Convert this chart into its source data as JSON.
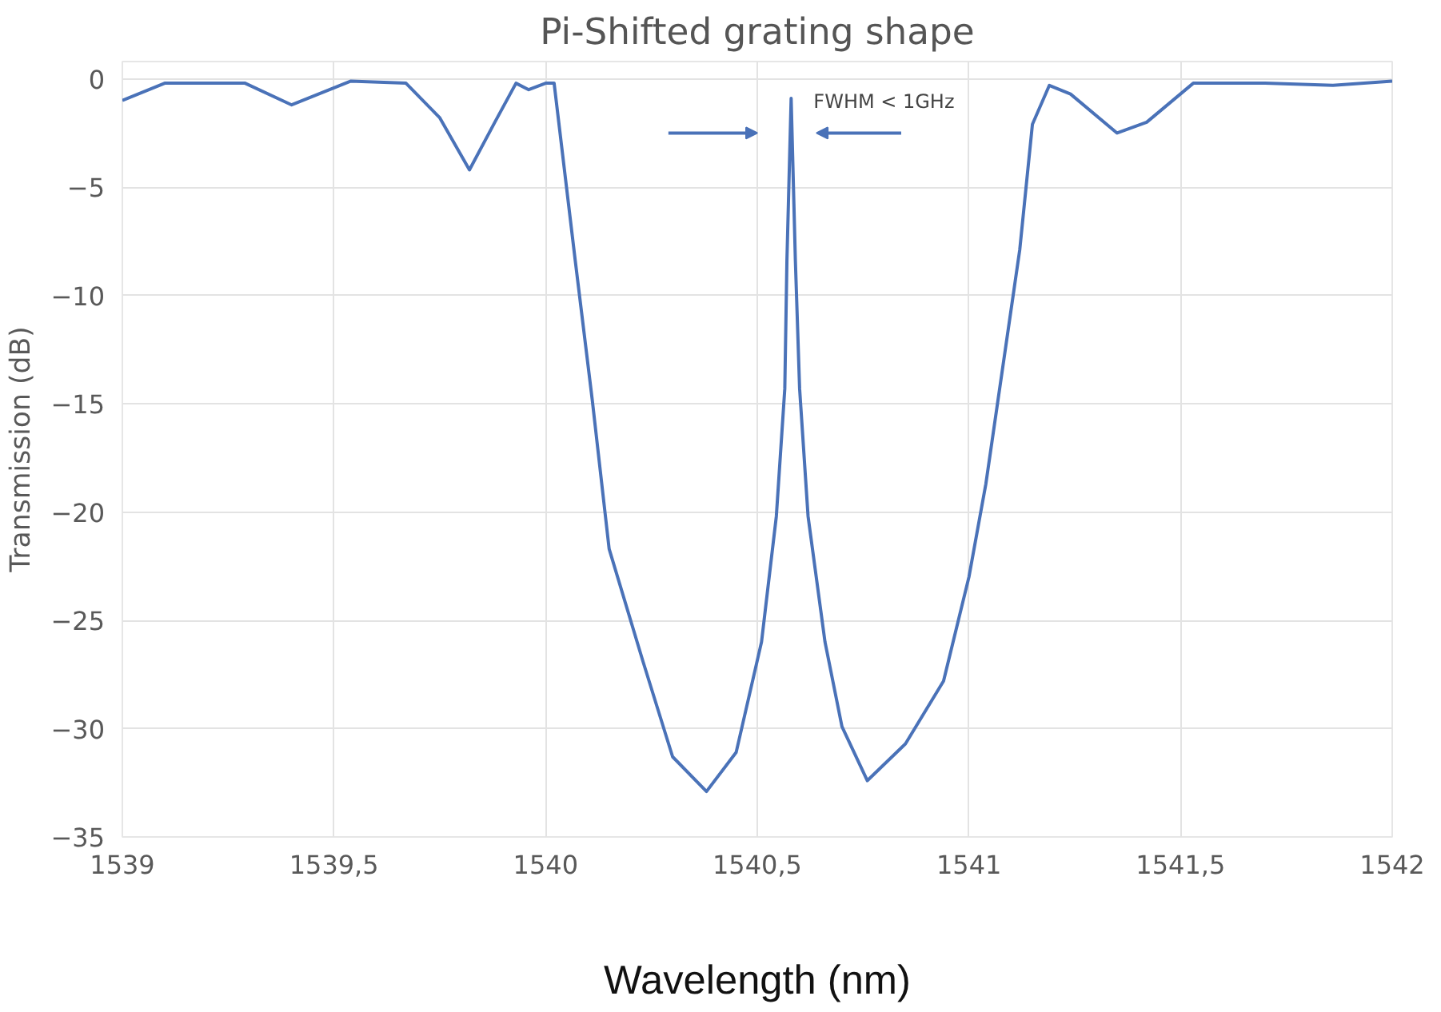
{
  "chart_data": {
    "type": "line",
    "title": "Pi-Shifted grating shape",
    "xlabel": "Wavelength (nm)",
    "ylabel": "Transmission (dB)",
    "xlim": [
      1539,
      1542
    ],
    "ylim": [
      -35,
      0.8
    ],
    "xticks": [
      1539,
      {
        "value": 1539.5,
        "label": "1539,5"
      },
      1540,
      {
        "value": 1540.5,
        "label": "1540,5"
      },
      1541,
      {
        "value": 1541.5,
        "label": "1541,5"
      },
      1542
    ],
    "yticks": [
      0,
      -5,
      -10,
      -15,
      -20,
      -25,
      -30,
      -35
    ],
    "grid": true,
    "marker": "none",
    "line_style": "solid",
    "annotations": [
      "FWHM < 1GHz"
    ],
    "series": [
      {
        "color": "#4a72b8",
        "x": [
          1539,
          1539.1,
          1539.29,
          1539.4,
          1539.54,
          1539.67,
          1539.75,
          1539.82,
          1539.88,
          1539.93,
          1539.96,
          1540.0,
          1540.02,
          1540.07,
          1540.11,
          1540.15,
          1540.23,
          1540.3,
          1540.38,
          1540.45,
          1540.51,
          1540.545,
          1540.565,
          1540.57,
          1540.58,
          1540.59,
          1540.6,
          1540.62,
          1540.66,
          1540.7,
          1540.76,
          1540.85,
          1540.94,
          1541.0,
          1541.04,
          1541.12,
          1541.15,
          1541.19,
          1541.24,
          1541.35,
          1541.42,
          1541.53,
          1541.7,
          1541.86,
          1542
        ],
        "values": [
          -1.0,
          -0.2,
          -0.2,
          -1.2,
          -0.1,
          -0.2,
          -1.8,
          -4.2,
          -2.0,
          -0.2,
          -0.5,
          -0.2,
          -0.2,
          -8.4,
          -14.8,
          -21.7,
          -26.9,
          -31.3,
          -32.9,
          -31.1,
          -26,
          -20.2,
          -14.3,
          -8.4,
          -0.9,
          -8.4,
          -14.3,
          -20.2,
          -26,
          -29.9,
          -32.4,
          -30.7,
          -27.8,
          -23,
          -18.7,
          -7.9,
          -2.1,
          -0.3,
          -0.7,
          -2.5,
          -2.0,
          -0.2,
          -0.2,
          -0.3,
          -0.1
        ]
      }
    ]
  }
}
